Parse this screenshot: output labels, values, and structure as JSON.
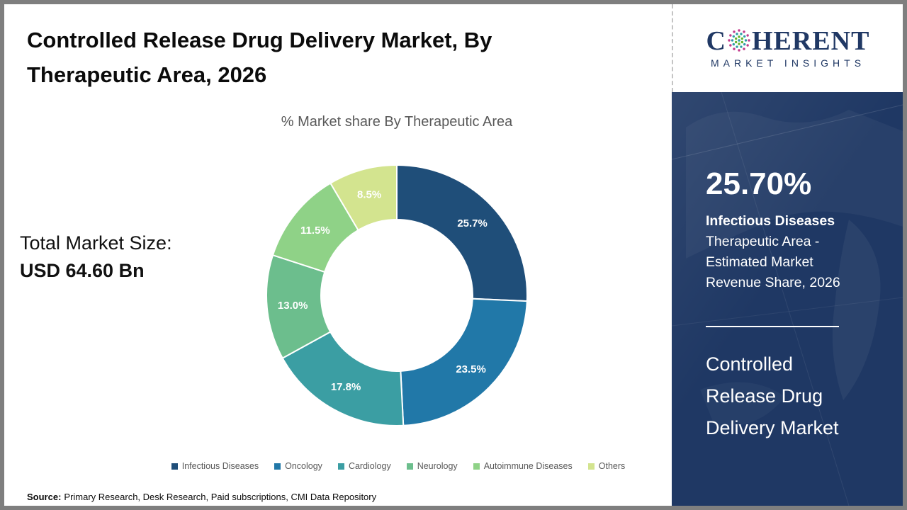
{
  "header": {
    "title": "Controlled Release Drug Delivery Market, By Therapeutic Area, 2026"
  },
  "chart_data": {
    "type": "pie",
    "subtype": "donut",
    "title": "% Market share By Therapeutic Area",
    "categories": [
      "Infectious Diseases",
      "Oncology",
      "Cardiology",
      "Neurology",
      "Autoimmune Diseases",
      "Others"
    ],
    "values": [
      25.7,
      23.5,
      17.8,
      13.0,
      11.5,
      8.5
    ],
    "data_labels": [
      "25.7%",
      "23.5%",
      "17.8%",
      "13.0%",
      "11.5%",
      "8.5%"
    ],
    "colors": [
      "#1F4E79",
      "#2178A8",
      "#3B9EA3",
      "#6CBE8D",
      "#8FD287",
      "#D3E48F"
    ],
    "start_angle_deg": 0,
    "direction": "clockwise",
    "legend_position": "bottom",
    "label_color": "#FFFFFF",
    "outer_radius": 185,
    "inner_radius": 107
  },
  "total_market": {
    "label": "Total Market Size:",
    "value": "USD 64.60 Bn"
  },
  "source": {
    "label": "Source:",
    "text": "Primary Research, Desk Research, Paid subscriptions, CMI Data Repository"
  },
  "sidebar": {
    "panel_color": "#1F3864",
    "logo": {
      "text_before": "C",
      "text_after": "HERENT",
      "tagline": "MARKET INSIGHTS",
      "brand_color": "#203864",
      "globe_colors": [
        "#C23A8C",
        "#2E9CA6",
        "#65B32E"
      ]
    },
    "stat": {
      "value": "25.70%",
      "highlight": "Infectious Diseases",
      "lines": [
        "Therapeutic Area -",
        "Estimated Market",
        "Revenue Share, 2026"
      ]
    },
    "market_title_lines": [
      "Controlled",
      "Release Drug",
      "Delivery Market"
    ]
  }
}
